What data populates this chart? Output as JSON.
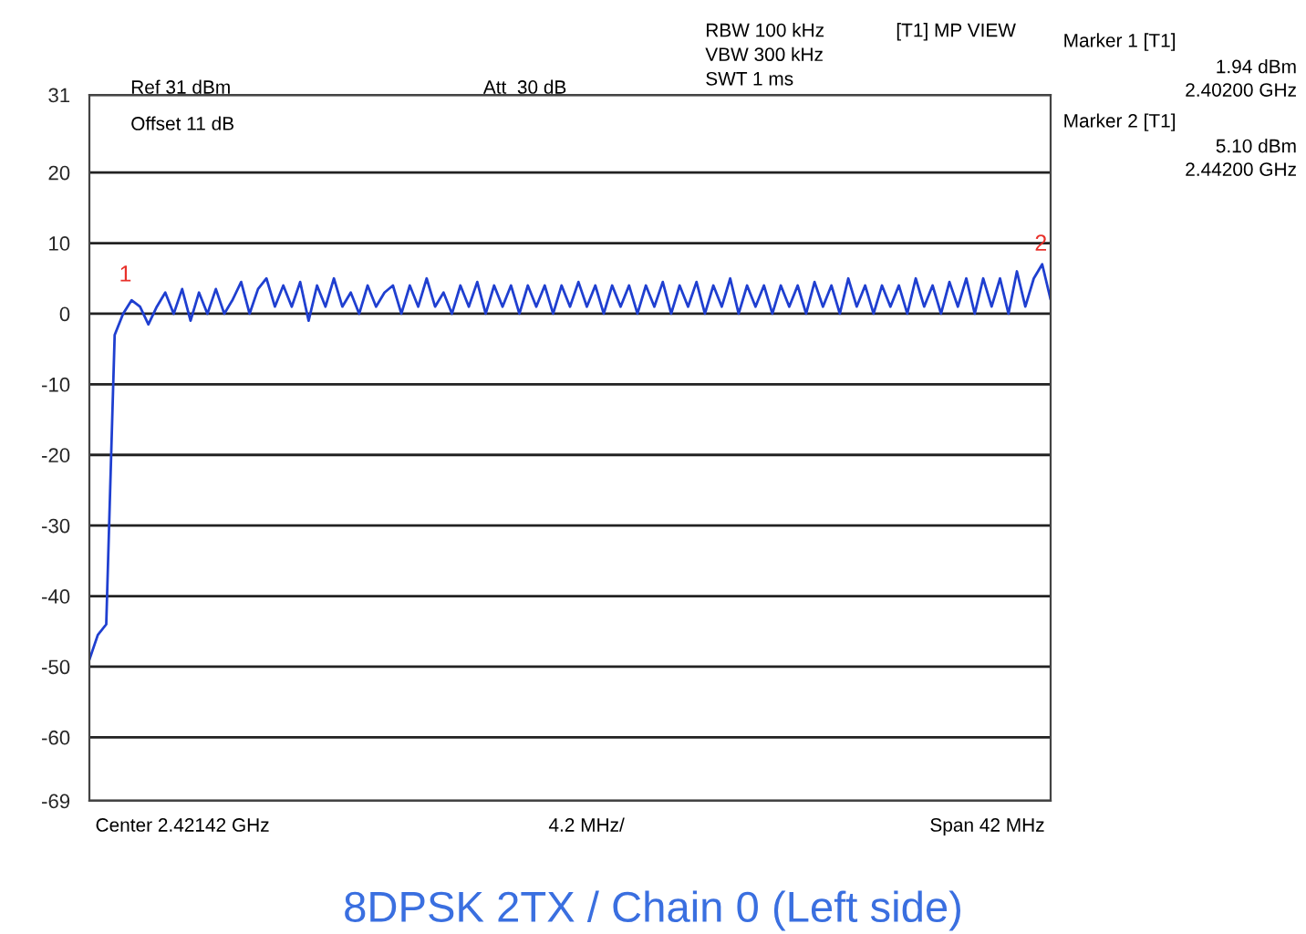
{
  "chart_data": {
    "type": "line",
    "title": "8DPSK 2TX / Chain 0 (Left side)",
    "categories": [
      null,
      null,
      null,
      null,
      null,
      null,
      null,
      null,
      null,
      null,
      null,
      null,
      null,
      null,
      null,
      null,
      null,
      null,
      null,
      null,
      null,
      null,
      null,
      null,
      null,
      null,
      null,
      null,
      null,
      null,
      null,
      null,
      null,
      null,
      null,
      null,
      null,
      null,
      null,
      null,
      null,
      null,
      null,
      null,
      null,
      null,
      null,
      null,
      null,
      null,
      null,
      null,
      null,
      null,
      null,
      null,
      null,
      null,
      null,
      null,
      null,
      null,
      null,
      null,
      null,
      null,
      null,
      null,
      null,
      null,
      null,
      null,
      null,
      null,
      null,
      null,
      null,
      null,
      null,
      null,
      null,
      null,
      null,
      null,
      null,
      null,
      null,
      null,
      null,
      null,
      null,
      null,
      null,
      null,
      null,
      null,
      null,
      null,
      null,
      null,
      null,
      null,
      null,
      null,
      null,
      null,
      null,
      null,
      null,
      null,
      null,
      null,
      null,
      null,
      null
    ],
    "series": [
      {
        "color": "#1f3fd0",
        "values": [
          -49,
          -45.5,
          -44,
          -3,
          0,
          1.9,
          1,
          -1.5,
          1,
          3,
          0,
          3.5,
          -1,
          3,
          0,
          3.5,
          0,
          2,
          4.5,
          0,
          3.5,
          5,
          1,
          4,
          1,
          4.5,
          -1,
          4,
          1,
          5,
          1,
          3,
          0,
          4,
          1,
          3,
          4,
          0,
          4,
          1,
          5,
          1,
          3,
          0,
          4,
          1,
          4.5,
          0,
          4,
          1,
          4,
          0,
          4,
          1,
          4,
          0,
          4,
          1,
          4.5,
          1,
          4,
          0,
          4,
          1,
          4,
          0,
          4,
          1,
          4.5,
          0,
          4,
          1,
          4.5,
          0,
          4,
          1,
          5,
          0,
          4,
          1,
          4,
          0,
          4,
          1,
          4,
          0,
          4.5,
          1,
          4,
          0,
          5,
          1,
          4,
          0,
          4,
          1,
          4,
          0,
          5,
          1,
          4,
          0,
          4.5,
          1,
          5,
          0,
          5,
          1,
          5,
          0,
          6,
          1,
          5,
          7,
          2
        ]
      }
    ],
    "ylim": [
      -69,
      31
    ],
    "yticks": [
      -69,
      -60,
      -50,
      -40,
      -30,
      -20,
      -10,
      0,
      10,
      20,
      31
    ],
    "grid": "y",
    "line_style": "solid",
    "marker": "none",
    "legend": false,
    "annotations": [
      "1",
      "2",
      "Ref 31 dBm",
      "Att  30 dB",
      "Offset 11 dB",
      "RBW 100 kHz",
      "VBW 300 kHz",
      "SWT 1 ms",
      "[T1] MP VIEW",
      "Marker 1 [T1]",
      "1.94 dBm",
      "2.40200 GHz",
      "Marker 2 [T1]",
      "5.10 dBm",
      "2.44200 GHz",
      "Center 2.42142 GHz",
      "4.2 MHz/",
      "Span 42 MHz"
    ]
  }
}
